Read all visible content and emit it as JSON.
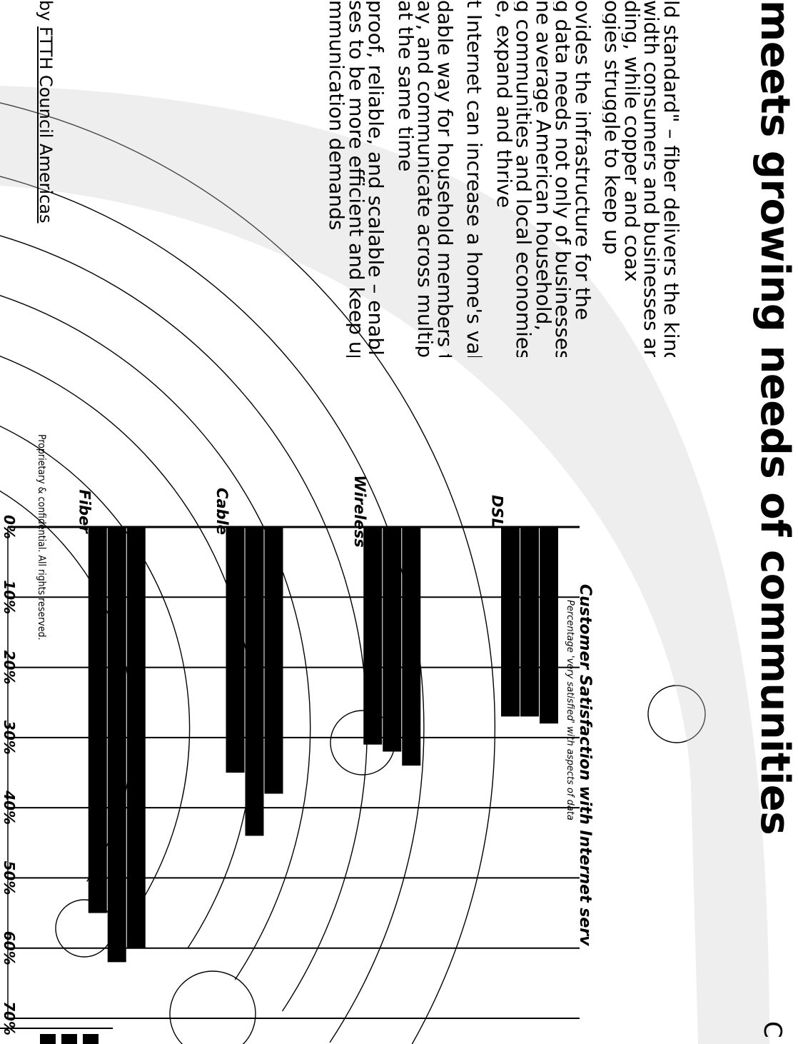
{
  "headline": "meets growing needs of communities",
  "corner_letter": "C",
  "body_lines": [
    "ld standard\" – fiber delivers the kind",
    "width consumers and businesses are",
    "ding, while copper and coax",
    "ogies struggle to keep up",
    "",
    "ovides the infrastructure for the",
    "g data needs not only of businesses",
    "ne average American household,",
    "g communities and local economies",
    "e, expand and thrive",
    "",
    "t Internet can increase a home's value",
    "",
    "dable way for household members to",
    "ay, and communicate across multiple",
    "at the same time",
    "",
    "proof, reliable, and scalable – enabling",
    "ses to be more efficient and keep up",
    "mmunication demands"
  ],
  "credit": {
    "prefix": "by ",
    "link": "FTTH Council Americas"
  },
  "confidential": "Proprietary & confidential. All rights reserved.",
  "chart_data": {
    "type": "bar",
    "title": "Customer Satisfaction with Internet serv",
    "subtitle": "Percentage 'very satisfied' with aspects of data",
    "categories": [
      "Fiber",
      "Cable",
      "Wireless",
      "DSL"
    ],
    "bars": [
      [
        60,
        62,
        55
      ],
      [
        38,
        44,
        35
      ],
      [
        34,
        32,
        31
      ],
      [
        28,
        27,
        27
      ]
    ],
    "axis_ticks": [
      "0%",
      "10%",
      "20%",
      "30%",
      "40%",
      "50%",
      "60%",
      "70%"
    ],
    "ylim": [
      0,
      70
    ],
    "grid": true,
    "bar_color": "#000000"
  }
}
